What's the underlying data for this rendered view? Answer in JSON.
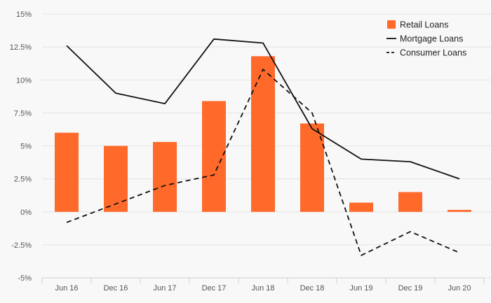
{
  "chart_data": {
    "type": "bar",
    "categories": [
      "Jun 16",
      "Dec 16",
      "Jun 17",
      "Dec 17",
      "Jun 18",
      "Dec 18",
      "Jun 19",
      "Dec 19",
      "Jun 20"
    ],
    "ylim": [
      -5,
      15
    ],
    "yticks": [
      -5,
      -2.5,
      0,
      2.5,
      5,
      7.5,
      10,
      12.5,
      15
    ],
    "ytick_labels": [
      "-5%",
      "-2.5%",
      "0%",
      "2.5%",
      "5%",
      "7.5%",
      "10%",
      "12.5%",
      "15%"
    ],
    "grid": true,
    "legend_position": "top-right",
    "series": [
      {
        "name": "Retail Loans",
        "kind": "bar",
        "color": "#ff6a2b",
        "values": [
          6.0,
          5.0,
          5.3,
          8.4,
          11.8,
          6.7,
          0.7,
          1.5,
          0.15
        ]
      },
      {
        "name": "Mortgage Loans",
        "kind": "line",
        "dash": "solid",
        "color": "#111111",
        "values": [
          12.6,
          9.0,
          8.2,
          13.1,
          12.8,
          6.3,
          4.0,
          3.8,
          2.5
        ]
      },
      {
        "name": "Consumer Loans",
        "kind": "line",
        "dash": "dashed",
        "color": "#111111",
        "values": [
          -0.8,
          0.6,
          2.0,
          2.8,
          10.8,
          7.5,
          -3.3,
          -1.5,
          -3.1
        ]
      }
    ]
  }
}
